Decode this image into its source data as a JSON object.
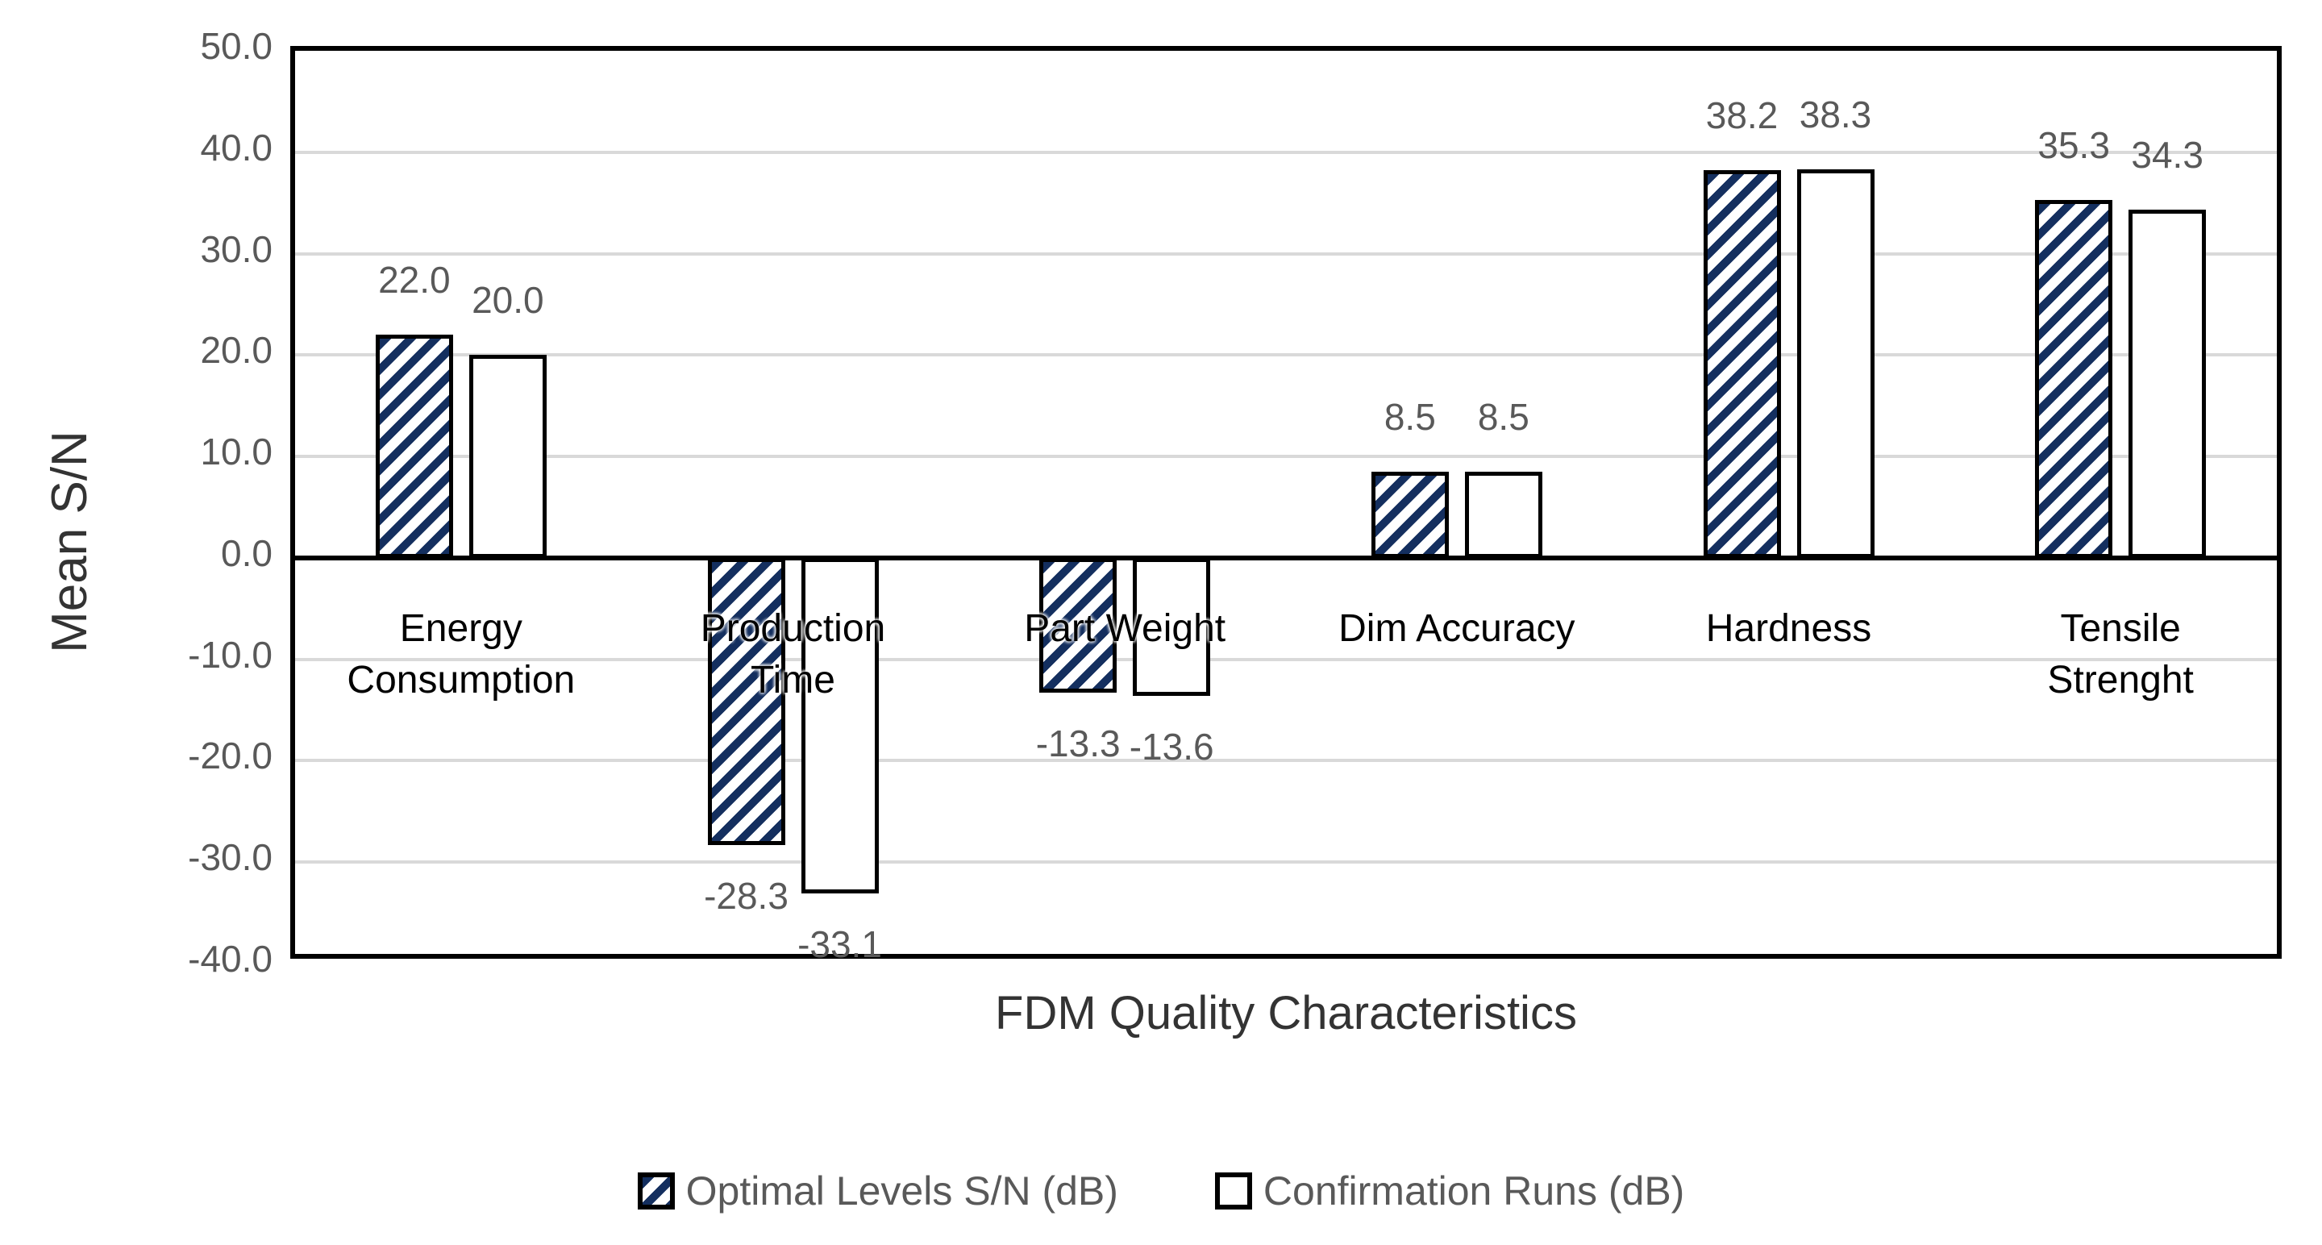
{
  "chart_data": {
    "type": "bar",
    "title": "",
    "xlabel": "FDM Quality Characteristics",
    "ylabel": "Mean S/N",
    "categories": [
      "Energy\nConsumption",
      "Production\nTime",
      "Part Weight",
      "Dim Accuracy",
      "Hardness",
      "Tensile\nStrenght"
    ],
    "series": [
      {
        "name": "Optimal Levels S/N (dB)",
        "style": "hatched",
        "values": [
          22.0,
          -28.3,
          -13.3,
          8.5,
          38.2,
          35.3
        ],
        "labels": [
          "22.0",
          "-28.3",
          "-13.3",
          "8.5",
          "38.2",
          "35.3"
        ]
      },
      {
        "name": "Confirmation Runs (dB)",
        "style": "plain",
        "values": [
          20.0,
          -33.1,
          -13.6,
          8.5,
          38.3,
          34.3
        ],
        "labels": [
          "20.0",
          "-33.1",
          "-13.6",
          "8.5",
          "38.3",
          "34.3"
        ]
      }
    ],
    "ylim": [
      -40,
      50
    ],
    "ytick_step": 10,
    "ytick_labels": [
      "50.0",
      "40.0",
      "30.0",
      "20.0",
      "10.0",
      "0.0",
      "-10.0",
      "-20.0",
      "-30.0",
      "-40.0"
    ],
    "grid": true,
    "legend_position": "bottom"
  },
  "colors": {
    "hatch_navy": "#142f5f",
    "bar_border": "#000000",
    "gridline": "#d9d9d9",
    "axis_frame": "#000000",
    "tick_text": "#595959",
    "data_label_text": "#595959",
    "category_text": "#000000",
    "title_text": "#333333",
    "legend_text": "#595959"
  }
}
